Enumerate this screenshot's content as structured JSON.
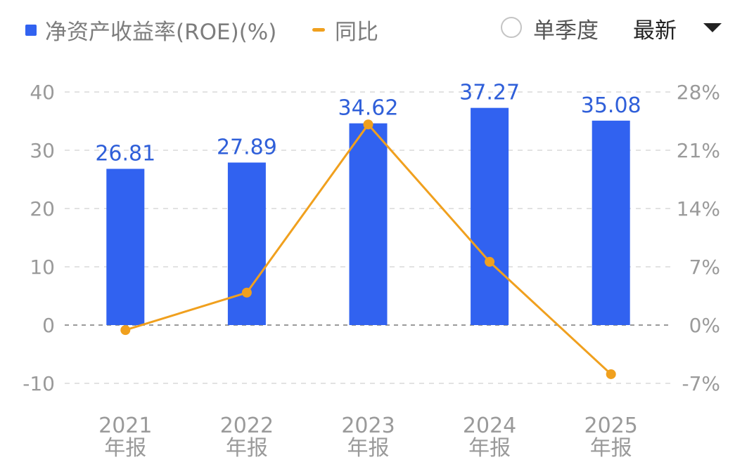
{
  "legend": {
    "bar_label": "净资产收益率(ROE)(%)",
    "line_label": "同比"
  },
  "controls": {
    "single_quarter_label": "单季度",
    "select_value": "最新"
  },
  "colors": {
    "bar": "#3162f0",
    "line": "#f0a01e",
    "bar_label": "#2f5fd9",
    "axis_text": "#9a9a9a",
    "grid": "#e2e2e2",
    "zero_line": "#9a9a9a"
  },
  "chart_data": {
    "type": "bar",
    "categories": [
      "2021\n年报",
      "2022\n年报",
      "2023\n年报",
      "2024\n年报",
      "2025\n年报"
    ],
    "series": [
      {
        "name": "净资产收益率(ROE)(%)",
        "type": "bar",
        "axis": "left",
        "values": [
          26.81,
          27.89,
          34.62,
          37.27,
          35.08
        ],
        "data_labels": [
          "26.81",
          "27.89",
          "34.62",
          "37.27",
          "35.08"
        ]
      },
      {
        "name": "同比",
        "type": "line",
        "axis": "right",
        "values": [
          -0.6,
          3.9,
          24.1,
          7.6,
          -5.9
        ]
      }
    ],
    "y_left": {
      "ylim": [
        -10,
        40
      ],
      "ticks": [
        40,
        30,
        20,
        10,
        0,
        -10
      ]
    },
    "y_right": {
      "ylim": [
        -7,
        28
      ],
      "ticks": [
        "28%",
        "21%",
        "14%",
        "7%",
        "0%",
        "-7%"
      ],
      "tick_values": [
        28,
        21,
        14,
        7,
        0,
        -7
      ]
    },
    "grid": true,
    "legend_position": "top-left"
  }
}
